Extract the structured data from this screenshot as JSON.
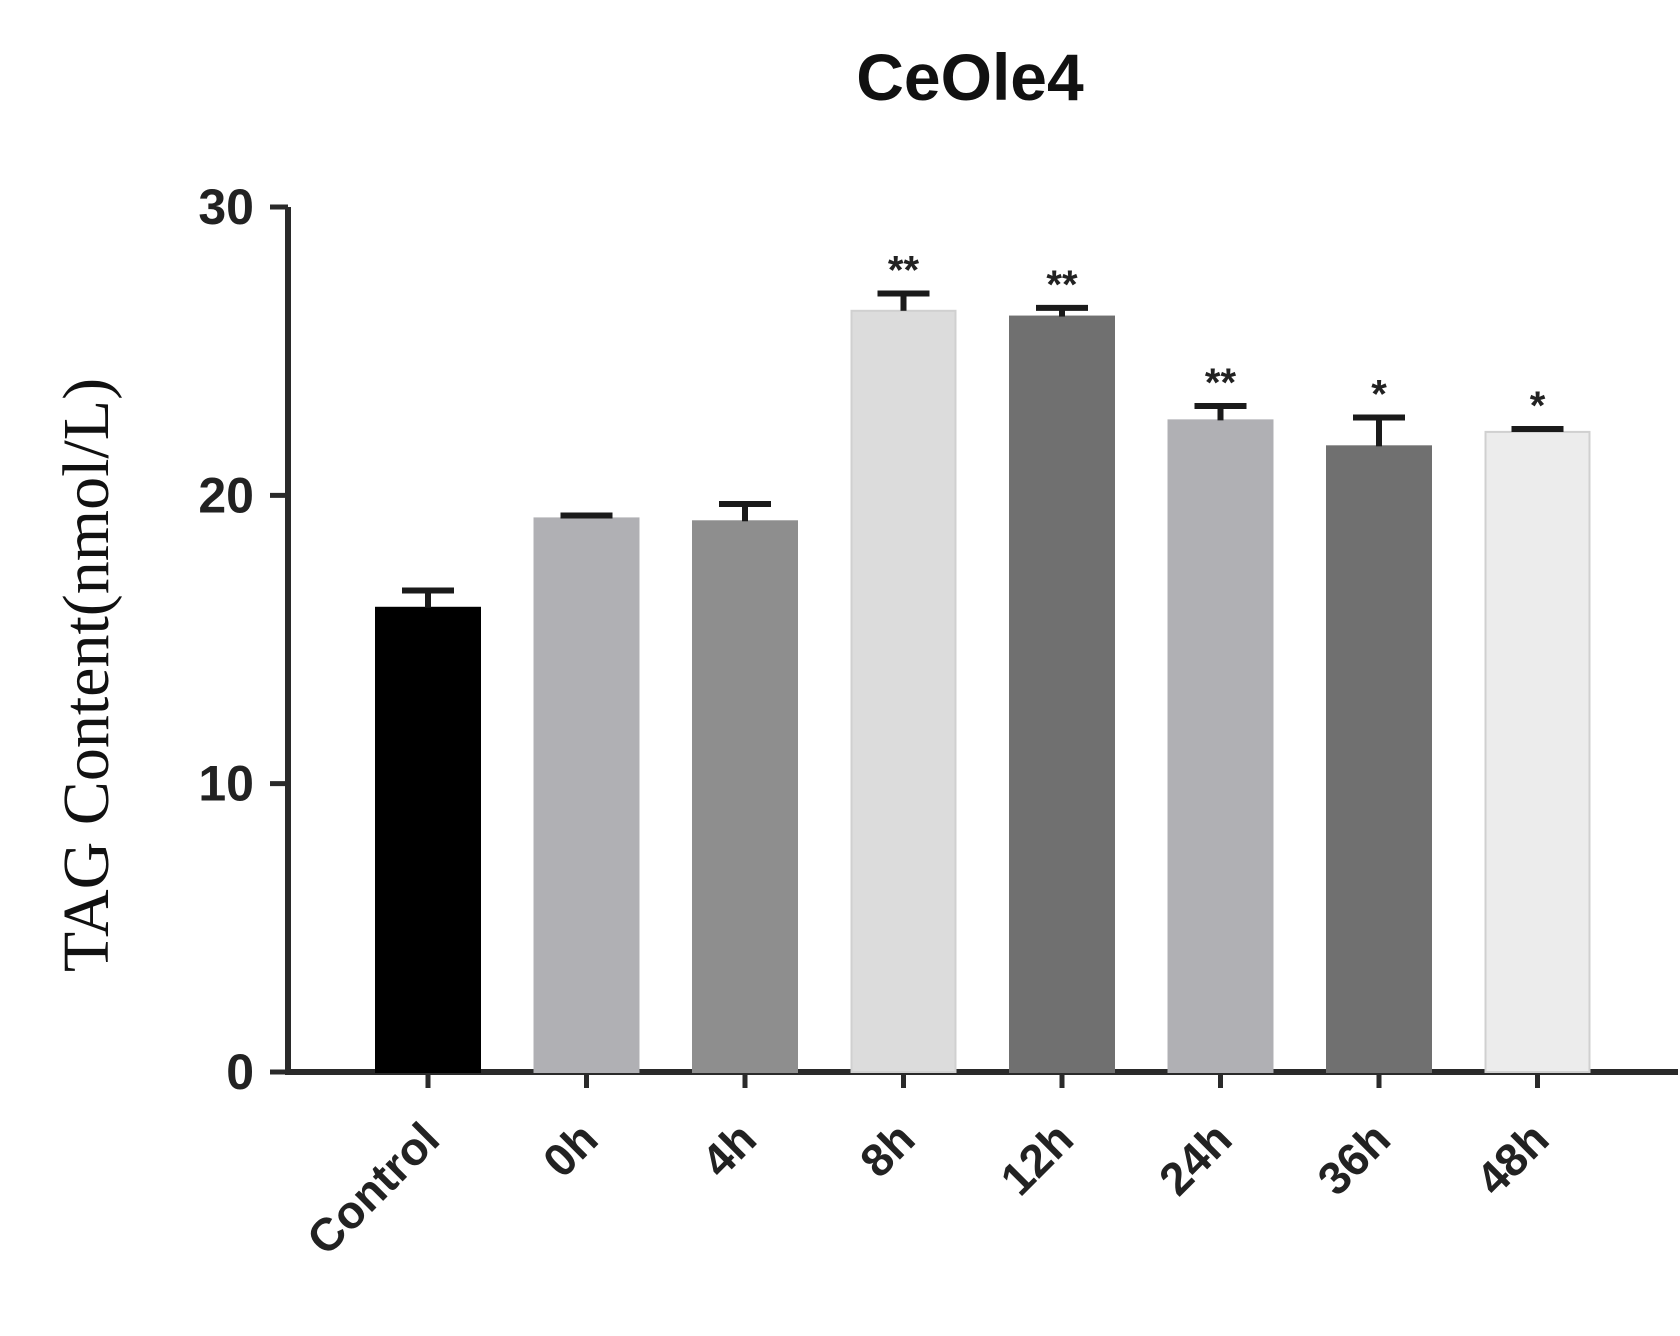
{
  "chart_data": {
    "type": "bar",
    "title": "CeOle4",
    "xlabel": "",
    "ylabel": "TAG Content(nmol/L)",
    "ylim": [
      0,
      30
    ],
    "yticks": [
      0,
      10,
      20,
      30
    ],
    "grid": false,
    "categories": [
      "Control",
      "0h",
      "4h",
      "8h",
      "12h",
      "24h",
      "36h",
      "48h"
    ],
    "values": [
      16.1,
      19.2,
      19.1,
      26.4,
      26.2,
      22.6,
      21.7,
      22.2
    ],
    "errors": [
      0.6,
      0.1,
      0.6,
      0.6,
      0.3,
      0.5,
      1.0,
      0.1
    ],
    "significance": [
      "",
      "",
      "",
      "**",
      "**",
      "**",
      "*",
      "*"
    ],
    "bar_colors": [
      "#000000",
      "#b0b0b4",
      "#8e8e8e",
      "#dcdcdc",
      "#707070",
      "#b0b0b4",
      "#707070",
      "#ececec"
    ]
  }
}
